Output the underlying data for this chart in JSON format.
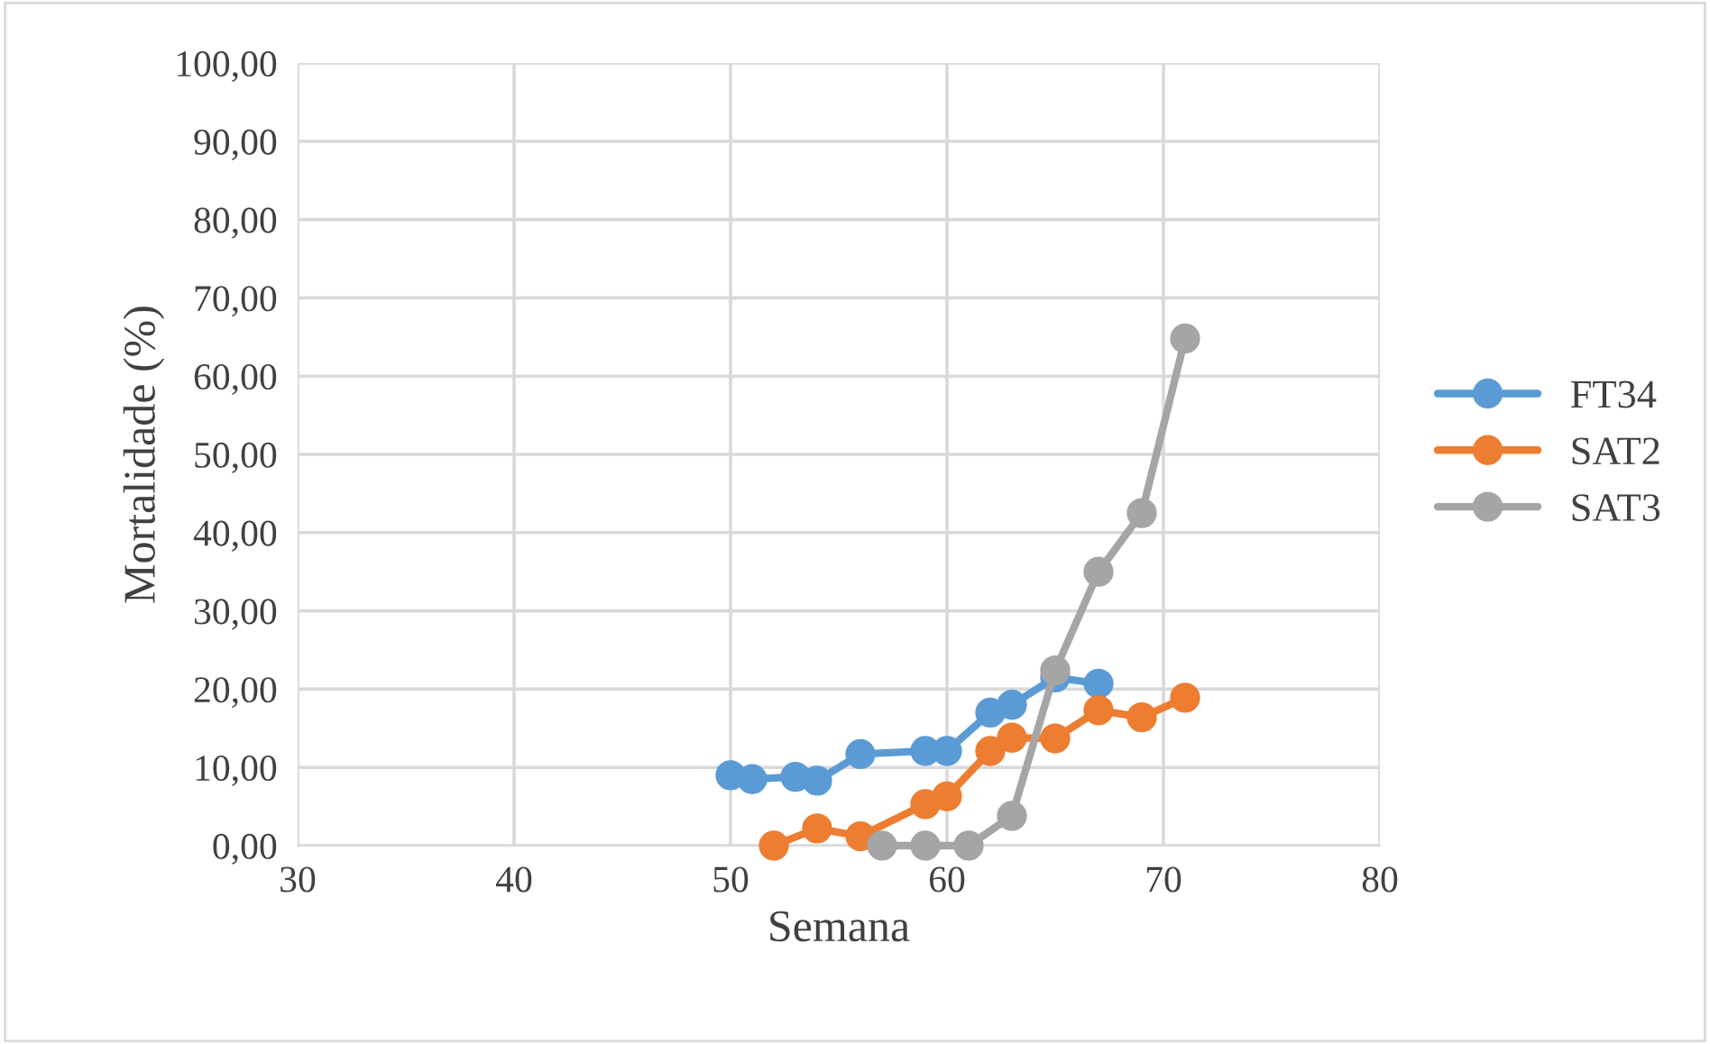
{
  "chart_data": {
    "type": "line",
    "xlabel": "Semana",
    "ylabel": "Mortalidade (%)",
    "xlim": [
      30,
      80
    ],
    "xticks": [
      30,
      40,
      50,
      60,
      70,
      80
    ],
    "ylim": [
      0,
      100
    ],
    "yticks": [
      {
        "value": 0,
        "label": "0,00"
      },
      {
        "value": 10,
        "label": "10,00"
      },
      {
        "value": 20,
        "label": "20,00"
      },
      {
        "value": 30,
        "label": "30,00"
      },
      {
        "value": 40,
        "label": "40,00"
      },
      {
        "value": 50,
        "label": "50,00"
      },
      {
        "value": 60,
        "label": "60,00"
      },
      {
        "value": 70,
        "label": "70,00"
      },
      {
        "value": 80,
        "label": "80,00"
      },
      {
        "value": 90,
        "label": "90,00"
      },
      {
        "value": 100,
        "label": "100,00"
      }
    ],
    "grid": true,
    "legend": "right",
    "marker": "circle",
    "line_style": "solid",
    "series": [
      {
        "name": "FT34",
        "color": "#5b9bd5",
        "x": [
          50,
          51,
          53,
          54,
          56,
          59,
          60,
          62,
          63,
          65,
          67
        ],
        "values": [
          9.0,
          8.5,
          8.8,
          8.3,
          11.7,
          12.1,
          12.1,
          17.0,
          18.0,
          21.5,
          20.7
        ]
      },
      {
        "name": "SAT2",
        "color": "#ed7d31",
        "x": [
          52,
          54,
          56,
          59,
          60,
          62,
          63,
          65,
          67,
          69,
          71
        ],
        "values": [
          0,
          2.2,
          1.2,
          5.3,
          6.3,
          12.1,
          13.8,
          13.7,
          17.3,
          16.4,
          18.9
        ]
      },
      {
        "name": "SAT3",
        "color": "#a5a5a5",
        "x": [
          57,
          59,
          61,
          63,
          65,
          67,
          69,
          71
        ],
        "values": [
          0,
          0,
          0,
          3.8,
          22.4,
          35.0,
          42.5,
          64.8
        ]
      }
    ]
  }
}
